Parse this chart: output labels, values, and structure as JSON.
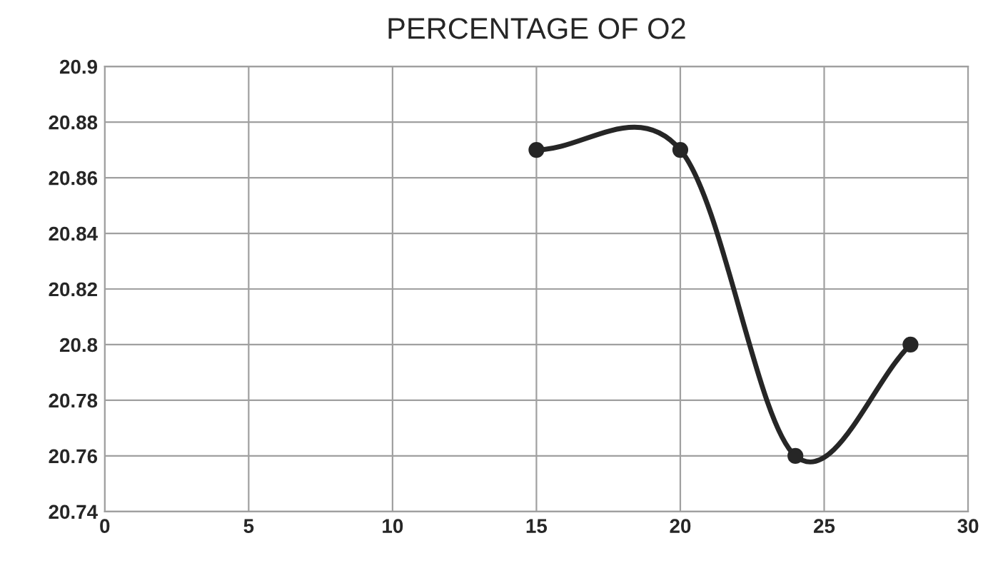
{
  "chart_data": {
    "type": "line",
    "title": "PERCENTAGE OF O2",
    "series": [
      {
        "color": "#262626",
        "x": [
          15,
          20,
          24,
          28
        ],
        "values": [
          20.87,
          20.87,
          20.76,
          20.8
        ]
      }
    ],
    "xlim": [
      0,
      30
    ],
    "xticks": [
      0,
      5,
      10,
      15,
      20,
      25,
      30
    ],
    "ylim": [
      20.74,
      20.9
    ],
    "yticks": [
      20.74,
      20.76,
      20.78,
      20.8,
      20.82,
      20.84,
      20.86,
      20.88,
      20.9
    ],
    "grid": true,
    "marker": "circle",
    "line_style": "solid",
    "legend": false
  }
}
